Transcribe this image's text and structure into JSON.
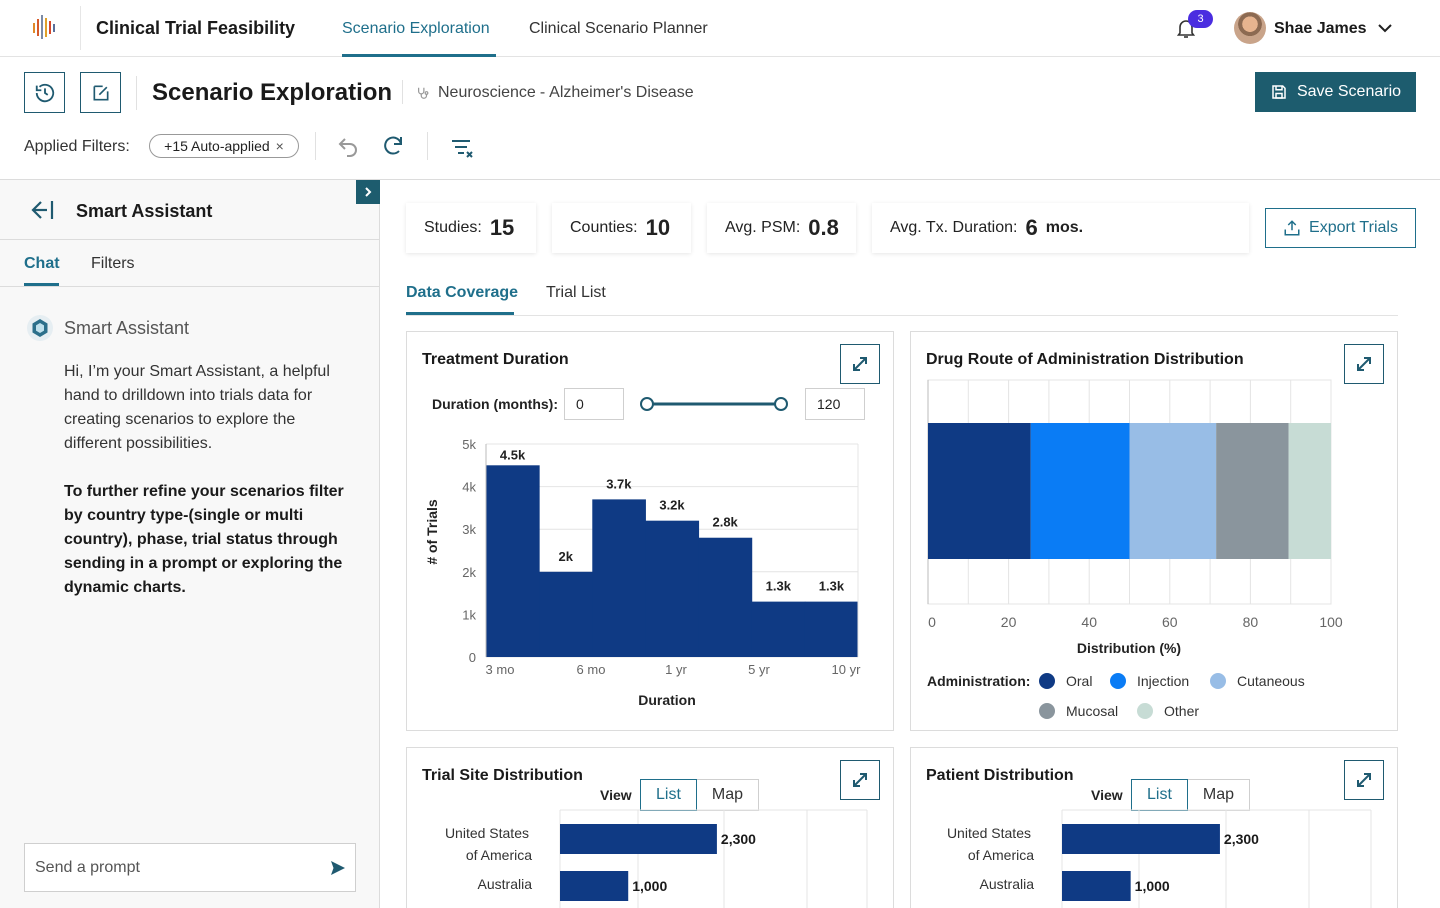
{
  "app": {
    "title": "Clinical Trial Feasibility"
  },
  "nav": {
    "tabs": [
      {
        "label": "Scenario Exploration",
        "active": true
      },
      {
        "label": "Clinical Scenario Planner",
        "active": false
      }
    ],
    "notifications": {
      "count": "3",
      "icon": "bell-icon"
    },
    "user": {
      "name": "Shae James"
    }
  },
  "header": {
    "title": "Scenario Exploration",
    "therapeutic_area": "Neuroscience",
    "separator": "-",
    "indication": "Alzheimer's Disease",
    "save_label": "Save Scenario",
    "filters_label": "Applied Filters:",
    "filter_chip": "+15 Auto-applied",
    "filter_chip_close": "×"
  },
  "sidebar": {
    "title": "Smart Assistant",
    "tabs": [
      {
        "label": "Chat",
        "active": true
      },
      {
        "label": "Filters",
        "active": false
      }
    ],
    "bot_name": "Smart Assistant",
    "message_1": "Hi, I’m your Smart Assistant, a helpful hand to drilldown into trials data for creating scenarios to explore the different possibilities.",
    "message_2": "To further refine your scenarios filter by country type-(single or multi country), phase, trial status through sending in a prompt or exploring the dynamic charts.",
    "prompt_placeholder": "Send a prompt"
  },
  "stats": [
    {
      "label": "Studies:",
      "value": "15",
      "unit": ""
    },
    {
      "label": "Counties:",
      "value": "10",
      "unit": ""
    },
    {
      "label": "Avg. PSM:",
      "value": "0.8",
      "unit": ""
    },
    {
      "label": "Avg. Tx. Duration:",
      "value": "6",
      "unit": "mos."
    }
  ],
  "export_label": "Export Trials",
  "main_tabs": [
    {
      "label": "Data Coverage",
      "active": true
    },
    {
      "label": "Trial List",
      "active": false
    }
  ],
  "treatment_duration": {
    "title": "Treatment Duration",
    "filter_label": "Duration (months):",
    "min_value": "0",
    "max_value": "120"
  },
  "drug_route": {
    "title": "Drug Route of Administration Distribution",
    "legend_title": "Administration:"
  },
  "trial_site": {
    "title": "Trial Site Distribution",
    "view_label": "View",
    "views": [
      "List",
      "Map"
    ],
    "active_view": "List"
  },
  "patient_dist": {
    "title": "Patient Distribution",
    "view_label": "View",
    "views": [
      "List",
      "Map"
    ],
    "active_view": "List"
  },
  "chart_data": [
    {
      "type": "bar",
      "title": "Treatment Duration",
      "xlabel": "Duration",
      "ylabel": "# of Trials",
      "ylim": [
        0,
        5000
      ],
      "yticks": [
        "0",
        "1k",
        "2k",
        "3k",
        "4k",
        "5k"
      ],
      "xticks": [
        "3 mo",
        "6 mo",
        "1 yr",
        "5 yr",
        "10 yr"
      ],
      "values": [
        4500,
        2000,
        3700,
        3200,
        2800,
        1300,
        1300
      ],
      "value_labels": [
        "4.5k",
        "2k",
        "3.7k",
        "3.2k",
        "2.8k",
        "1.3k",
        "1.3k"
      ],
      "grid": true,
      "colors": {
        "bar": "#0f3a84"
      }
    },
    {
      "type": "bar",
      "orientation": "horizontal-stacked",
      "title": "Drug Route of Administration Distribution",
      "xlabel": "Distribution (%)",
      "xlim": [
        0,
        100
      ],
      "xticks": [
        "0",
        "20",
        "40",
        "60",
        "80",
        "100"
      ],
      "legend_title": "Administration:",
      "legend_placement": "bottom",
      "series": [
        {
          "name": "Oral",
          "value": 25.5,
          "color": "#0f3a84"
        },
        {
          "name": "Injection",
          "value": 24.5,
          "color": "#0a7cf5"
        },
        {
          "name": "Cutaneous",
          "value": 21.5,
          "color": "#98bde6"
        },
        {
          "name": "Mucosal",
          "value": 18,
          "color": "#8a959d"
        },
        {
          "name": "Other",
          "value": 10.5,
          "color": "#c7dcd5"
        }
      ]
    },
    {
      "type": "bar",
      "orientation": "horizontal",
      "title": "Trial Site Distribution",
      "categories": [
        "United States of America",
        "Australia"
      ],
      "category_lines": [
        [
          "United States",
          "of America"
        ],
        [
          "Australia"
        ]
      ],
      "values": [
        2300,
        1000
      ],
      "value_labels": [
        "2,300",
        "1,000"
      ],
      "xlim": [
        0,
        4500
      ],
      "colors": {
        "bar": "#0f3a84"
      }
    },
    {
      "type": "bar",
      "orientation": "horizontal",
      "title": "Patient Distribution",
      "categories": [
        "United States of America",
        "Australia"
      ],
      "category_lines": [
        [
          "United States",
          "of America"
        ],
        [
          "Australia"
        ]
      ],
      "values": [
        2300,
        1000
      ],
      "value_labels": [
        "2,300",
        "1,000"
      ],
      "xlim": [
        0,
        4500
      ],
      "colors": {
        "bar": "#0f3a84"
      }
    }
  ],
  "colors": {
    "brand": "#1d5c6e",
    "accent": "#1f6f8b",
    "badge": "#4a2de0"
  }
}
